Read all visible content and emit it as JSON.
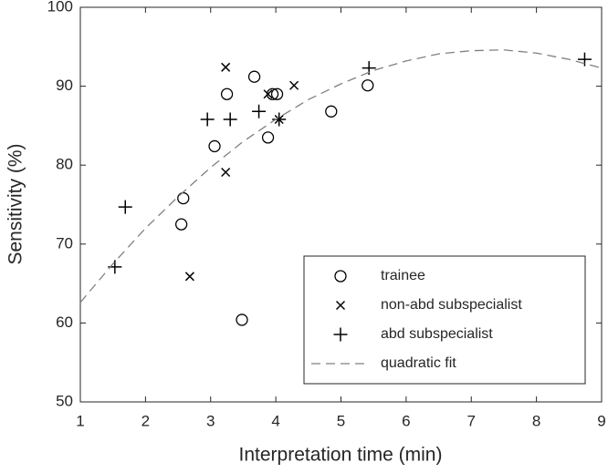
{
  "chart_data": {
    "type": "scatter",
    "x_label": "Interpretation time (min)",
    "y_label": "Sensitivity (%)",
    "xlim": [
      1,
      9
    ],
    "xticks": [
      1,
      2,
      3,
      4,
      5,
      6,
      7,
      8,
      9
    ],
    "ylim": [
      50,
      100
    ],
    "yticks": [
      50,
      60,
      70,
      80,
      90,
      100
    ],
    "legend": "lower right",
    "series": [
      {
        "name": "trainee",
        "marker": "o",
        "color": "#000000",
        "x": [
          2.58,
          2.55,
          3.06,
          3.25,
          3.67,
          3.88,
          3.95,
          4.02,
          3.48,
          4.85,
          5.41
        ],
        "values": [
          75.8,
          72.5,
          82.4,
          89.0,
          91.2,
          83.5,
          89.0,
          89.0,
          60.4,
          86.8,
          90.1
        ]
      },
      {
        "name": "non-abd subspecialist",
        "marker": "x",
        "color": "#000000",
        "x": [
          3.23,
          3.23,
          2.68,
          3.88,
          4.28,
          4.05
        ],
        "values": [
          92.4,
          79.1,
          65.9,
          89.0,
          90.1,
          85.8
        ]
      },
      {
        "name": "abd subspecialist",
        "marker": "+",
        "color": "#000000",
        "x": [
          1.53,
          1.69,
          2.95,
          3.3,
          3.74,
          4.05,
          5.43,
          8.74
        ],
        "values": [
          67.1,
          74.7,
          85.8,
          85.8,
          86.8,
          85.8,
          92.3,
          93.4
        ]
      },
      {
        "name": "quadratic fit",
        "marker": "dashed-line",
        "color": "#808080",
        "x": [
          1,
          1.5,
          2,
          2.5,
          3,
          3.5,
          4,
          4.5,
          5,
          5.5,
          6,
          6.5,
          7,
          7.5,
          8,
          8.5,
          9
        ],
        "values": [
          62.6,
          67.5,
          72.0,
          76.0,
          79.7,
          83.0,
          85.8,
          88.3,
          90.3,
          92.0,
          93.2,
          94.1,
          94.5,
          94.6,
          94.2,
          93.4,
          92.3
        ]
      }
    ]
  }
}
